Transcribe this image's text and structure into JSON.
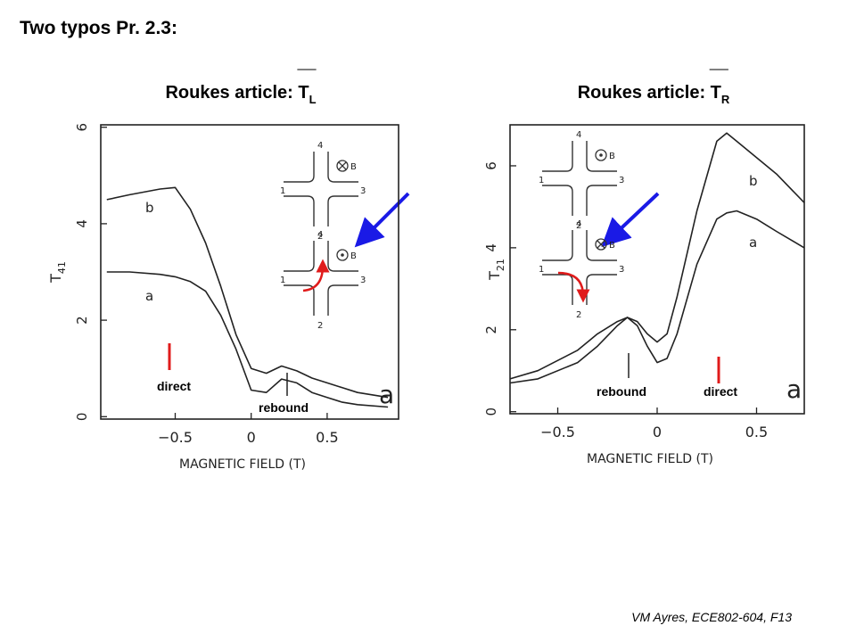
{
  "header": {
    "title": "Two typos Pr. 2.3:"
  },
  "footer": {
    "text": "VM Ayres, ECE802-604, F13"
  },
  "chart_data": [
    {
      "type": "line",
      "title": "Roukes article: T",
      "title_subscript": "L",
      "xlabel": "MAGNETIC FIELD (T)",
      "ylabel": "T",
      "ylabel_subscript": "41",
      "xlim": [
        -0.99,
        0.97
      ],
      "ylim": [
        -0.05,
        6.05
      ],
      "xticks": [
        {
          "value": -0.5,
          "label": "−0.5"
        },
        0,
        0.5
      ],
      "yticks": [
        0,
        2,
        4,
        6
      ],
      "x": [
        -0.95,
        -0.8,
        -0.6,
        -0.5,
        -0.4,
        -0.3,
        -0.2,
        -0.1,
        0,
        0.1,
        0.2,
        0.3,
        0.4,
        0.5,
        0.6,
        0.7,
        0.9
      ],
      "series": [
        {
          "name": "b",
          "color": "#222222",
          "values": [
            4.5,
            4.6,
            4.72,
            4.75,
            4.3,
            3.6,
            2.7,
            1.7,
            1.0,
            0.9,
            1.05,
            0.95,
            0.8,
            0.7,
            0.6,
            0.5,
            0.4
          ]
        },
        {
          "name": "a",
          "color": "#222222",
          "values": [
            3.0,
            3.0,
            2.95,
            2.9,
            2.8,
            2.6,
            2.1,
            1.4,
            0.55,
            0.5,
            0.78,
            0.7,
            0.5,
            0.4,
            0.3,
            0.25,
            0.2
          ]
        }
      ],
      "panel_label": "a",
      "inset_terminals": [
        "1",
        "2",
        "3",
        "4"
      ],
      "inset_field_label": "B",
      "insets": [
        {
          "field": "into"
        },
        {
          "field": "out"
        }
      ],
      "annotations": [
        {
          "text": "direct"
        },
        {
          "text": "rebound"
        }
      ]
    },
    {
      "type": "line",
      "title": "Roukes article: T",
      "title_subscript": "R",
      "xlabel": "MAGNETIC FIELD (T)",
      "ylabel": "T",
      "ylabel_subscript": "21",
      "xlim": [
        -0.74,
        0.74
      ],
      "ylim": [
        -0.05,
        7.0
      ],
      "xticks": [
        {
          "value": -0.5,
          "label": "−0.5"
        },
        0,
        0.5
      ],
      "yticks": [
        0,
        2,
        4,
        6
      ],
      "x": [
        -0.74,
        -0.6,
        -0.4,
        -0.3,
        -0.2,
        -0.15,
        -0.1,
        -0.05,
        0,
        0.05,
        0.1,
        0.2,
        0.3,
        0.35,
        0.4,
        0.5,
        0.6,
        0.74
      ],
      "series": [
        {
          "name": "b",
          "color": "#222222",
          "values": [
            0.8,
            1.0,
            1.5,
            1.9,
            2.2,
            2.3,
            2.2,
            1.9,
            1.7,
            1.9,
            2.8,
            4.9,
            6.6,
            6.8,
            6.6,
            6.2,
            5.8,
            5.1
          ]
        },
        {
          "name": "a",
          "color": "#222222",
          "values": [
            0.7,
            0.8,
            1.2,
            1.6,
            2.1,
            2.3,
            2.1,
            1.6,
            1.2,
            1.3,
            1.9,
            3.6,
            4.7,
            4.85,
            4.9,
            4.7,
            4.4,
            4.0
          ]
        }
      ],
      "panel_label": "a",
      "inset_terminals": [
        "1",
        "2",
        "3",
        "4"
      ],
      "inset_field_label": "B",
      "insets": [
        {
          "field": "out"
        },
        {
          "field": "into"
        }
      ],
      "annotations": [
        {
          "text": "rebound"
        },
        {
          "text": "direct"
        }
      ]
    }
  ]
}
